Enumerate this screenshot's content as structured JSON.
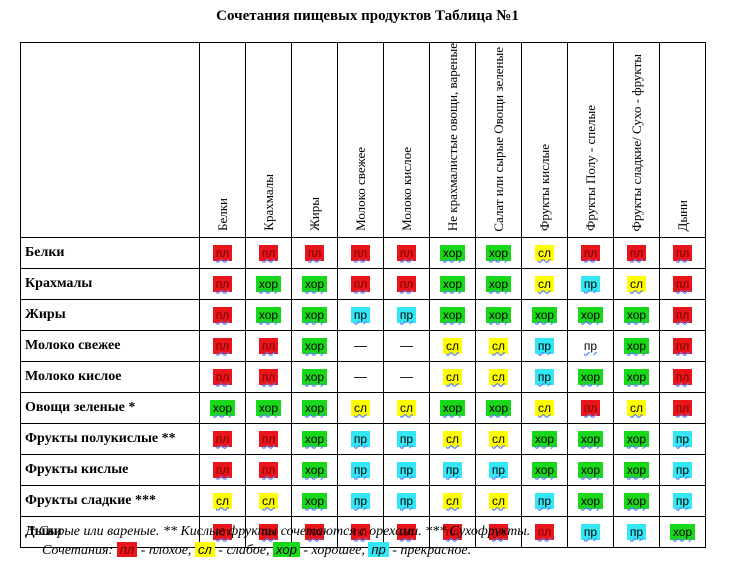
{
  "title": "Сочетания пищевых продуктов Таблица №1",
  "columns": [
    "Белки",
    "Крахмалы",
    "Жиры",
    "Молоко свежее",
    "Молоко кислое",
    "Не крахмалистые овощи, вареные",
    "Салат или сырые Овощи зеленые",
    "Фрукты кислые",
    "Фрукты Полу - спелые",
    "Фрукты сладкие/ Сухо - фрукты",
    "Дыни"
  ],
  "rows": [
    {
      "label": "Белки",
      "cells": [
        "пл",
        "пл",
        "пл",
        "пл",
        "пл",
        "хор",
        "хор",
        "сл",
        "пл",
        "пл",
        "пл"
      ]
    },
    {
      "label": "Крахмалы",
      "cells": [
        "пл",
        "хор",
        "хор",
        "пл",
        "пл",
        "хор",
        "хор",
        "сл",
        "пр",
        "сл",
        "пл"
      ]
    },
    {
      "label": "Жиры",
      "cells": [
        "пл",
        "хор",
        "хор",
        "пр",
        "пр",
        "хор",
        "хор",
        "хор",
        "хор",
        "хор",
        "пл"
      ]
    },
    {
      "label": "Молоко свежее",
      "cells": [
        "пл",
        "пл",
        "хор",
        "—",
        "—",
        "сл",
        "сл",
        "пр",
        "пр",
        "хор",
        "пл"
      ]
    },
    {
      "label": "Молоко кислое",
      "cells": [
        "пл",
        "пл",
        "хор",
        "—",
        "—",
        "сл",
        "сл",
        "пр",
        "хор",
        "хор",
        "пл"
      ]
    },
    {
      "label": "Овощи зеленые *",
      "cells": [
        "хор",
        "хор",
        "хор",
        "сл",
        "сл",
        "хор",
        "хор",
        "сл",
        "пл",
        "сл",
        "пл"
      ]
    },
    {
      "label": "Фрукты полукислые **",
      "cells": [
        "пл",
        "пл",
        "хор",
        "пр",
        "пр",
        "сл",
        "сл",
        "хор",
        "хор",
        "хор",
        "пр"
      ]
    },
    {
      "label": "Фрукты кислые",
      "cells": [
        "пл",
        "пл",
        "хор",
        "пр",
        "пр",
        "пр",
        "пр",
        "хор",
        "хор",
        "хор",
        "пр"
      ]
    },
    {
      "label": "Фрукты сладкие ***",
      "cells": [
        "сл",
        "сл",
        "хор",
        "пр",
        "пр",
        "сл",
        "сл",
        "пр",
        "хор",
        "хор",
        "пр"
      ]
    },
    {
      "label": "Дыни",
      "cells": [
        "пл",
        "пл",
        "пл",
        "пл",
        "пл",
        "пл",
        "пл",
        "пл",
        "пр",
        "пр",
        "хор"
      ]
    }
  ],
  "cell_styles": {
    "пл": "pl",
    "сл": "sl",
    "хор": "hor",
    "пр": "pr",
    "—": "dash"
  },
  "plain_cells": [
    [
      3,
      8
    ]
  ],
  "colors": {
    "пл": "#e8161b",
    "сл": "#ffff00",
    "хор": "#19d819",
    "пр": "#34e7f5"
  },
  "footnote": "* Сырые или вареные. ** Кислые фрукты сочетаются с орехами. *** Сухофрукты.",
  "legend": {
    "prefix": "Сочетания:",
    "items": [
      {
        "code": "пл",
        "text": "- плохое,"
      },
      {
        "code": "сл",
        "text": "- слабое,"
      },
      {
        "code": "хор",
        "text": "- хорошее,"
      },
      {
        "code": "пр",
        "text": "- прекрасное."
      }
    ]
  }
}
